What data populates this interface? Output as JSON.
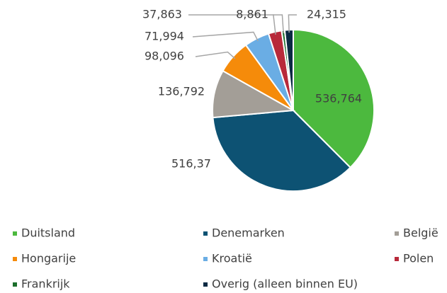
{
  "chart_data": {
    "type": "pie",
    "categories": [
      "Duitsland",
      "Denemarken",
      "België",
      "Hongarije",
      "Kroatië",
      "Polen",
      "Frankrijk",
      "Overig (alleen binnen EU)"
    ],
    "values": [
      536.764,
      516.37,
      136.792,
      98.096,
      71.994,
      37.863,
      8.861,
      24.315
    ],
    "value_labels": [
      "536,764",
      "516,37",
      "136,792",
      "98,096",
      "71,994",
      "37,863",
      "8,861",
      "24,315"
    ],
    "colors": [
      "#4cb93e",
      "#0d5273",
      "#a39e97",
      "#f58b0a",
      "#6aade4",
      "#b8293a",
      "#1b6e2b",
      "#0b2a43"
    ],
    "legend": "bottom"
  }
}
